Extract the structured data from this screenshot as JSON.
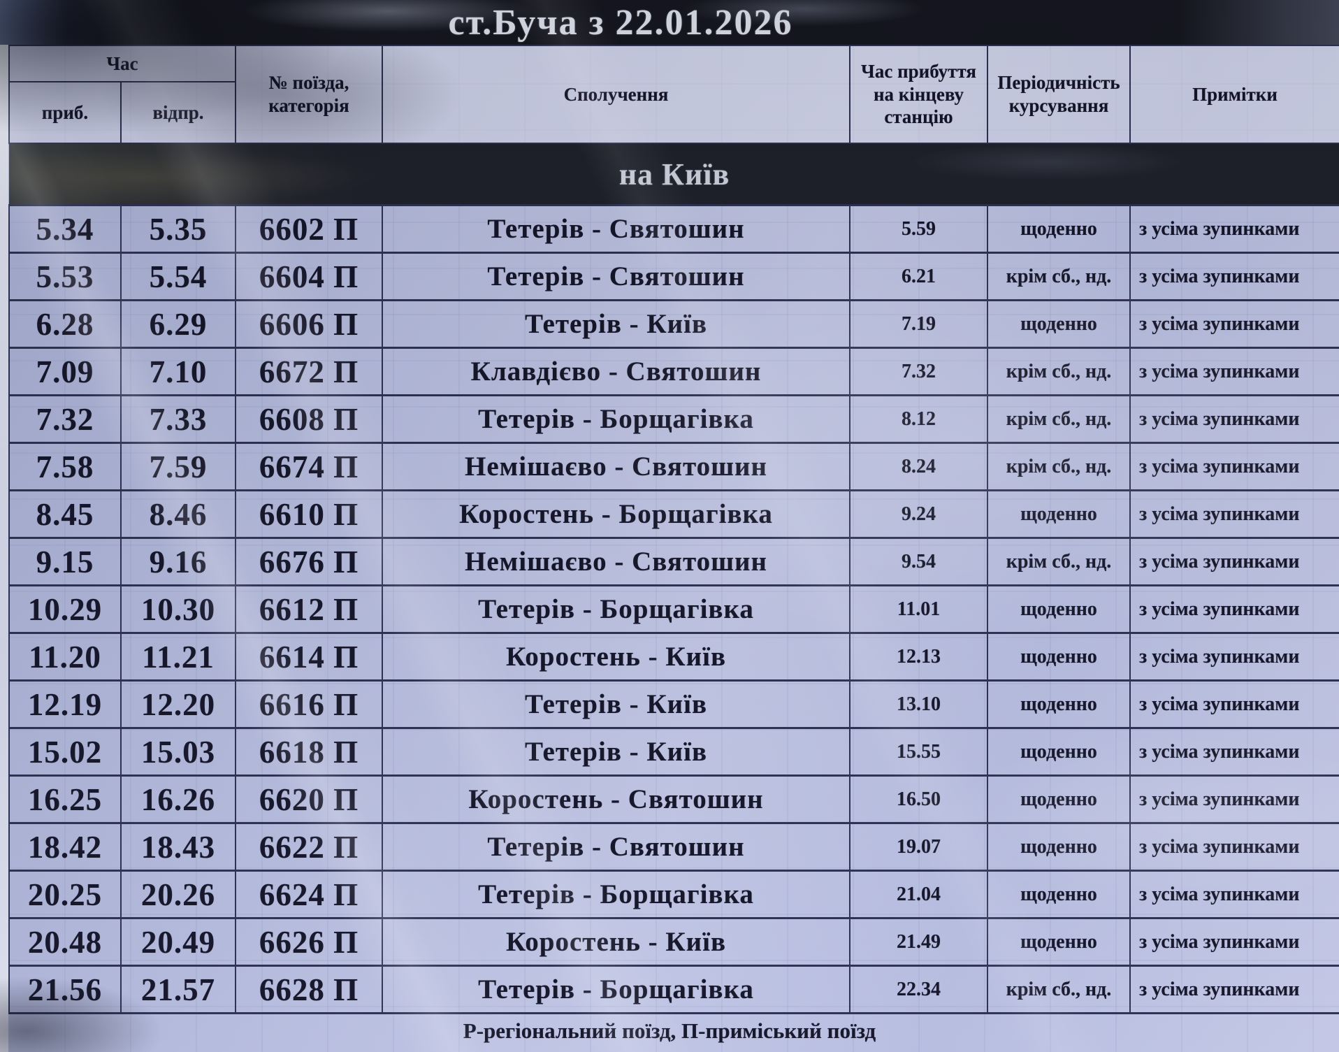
{
  "title": "ст.Буча з 22.01.2026",
  "section_header": "на Київ",
  "columns": {
    "time_group": "Час",
    "arrive": "приб.",
    "depart": "відпр.",
    "train": "№ поїзда,\nкатегорія",
    "route": "Сполучення",
    "final_arrival": "Час прибуття\nна кінцеву\nстанцію",
    "periodicity": "Періодичність\nкурсування",
    "notes": "Примітки"
  },
  "rows": [
    {
      "arr": "5.34",
      "dep": "5.35",
      "train": "6602 П",
      "route": "Тетерів - Святошин",
      "fin": "5.59",
      "per": "щоденно",
      "note": "з усіма зупинками"
    },
    {
      "arr": "5.53",
      "dep": "5.54",
      "train": "6604 П",
      "route": "Тетерів - Святошин",
      "fin": "6.21",
      "per": "крім сб., нд.",
      "note": "з усіма зупинками"
    },
    {
      "arr": "6.28",
      "dep": "6.29",
      "train": "6606 П",
      "route": "Тетерів - Київ",
      "fin": "7.19",
      "per": "щоденно",
      "note": "з усіма зупинками"
    },
    {
      "arr": "7.09",
      "dep": "7.10",
      "train": "6672 П",
      "route": "Клавдієво - Святошин",
      "fin": "7.32",
      "per": "крім сб., нд.",
      "note": "з усіма зупинками"
    },
    {
      "arr": "7.32",
      "dep": "7.33",
      "train": "6608 П",
      "route": "Тетерів - Борщагівка",
      "fin": "8.12",
      "per": "крім сб., нд.",
      "note": "з усіма зупинками"
    },
    {
      "arr": "7.58",
      "dep": "7.59",
      "train": "6674 П",
      "route": "Немішаєво - Святошин",
      "fin": "8.24",
      "per": "крім сб., нд.",
      "note": "з усіма зупинками"
    },
    {
      "arr": "8.45",
      "dep": "8.46",
      "train": "6610 П",
      "route": "Коростень - Борщагівка",
      "fin": "9.24",
      "per": "щоденно",
      "note": "з усіма зупинками"
    },
    {
      "arr": "9.15",
      "dep": "9.16",
      "train": "6676 П",
      "route": "Немішаєво - Святошин",
      "fin": "9.54",
      "per": "крім сб., нд.",
      "note": "з усіма зупинками"
    },
    {
      "arr": "10.29",
      "dep": "10.30",
      "train": "6612 П",
      "route": "Тетерів - Борщагівка",
      "fin": "11.01",
      "per": "щоденно",
      "note": "з усіма зупинками"
    },
    {
      "arr": "11.20",
      "dep": "11.21",
      "train": "6614 П",
      "route": "Коростень - Київ",
      "fin": "12.13",
      "per": "щоденно",
      "note": "з усіма зупинками"
    },
    {
      "arr": "12.19",
      "dep": "12.20",
      "train": "6616 П",
      "route": "Тетерів - Київ",
      "fin": "13.10",
      "per": "щоденно",
      "note": "з усіма зупинками"
    },
    {
      "arr": "15.02",
      "dep": "15.03",
      "train": "6618 П",
      "route": "Тетерів - Київ",
      "fin": "15.55",
      "per": "щоденно",
      "note": "з усіма зупинками"
    },
    {
      "arr": "16.25",
      "dep": "16.26",
      "train": "6620 П",
      "route": "Коростень - Святошин",
      "fin": "16.50",
      "per": "щоденно",
      "note": "з усіма зупинками"
    },
    {
      "arr": "18.42",
      "dep": "18.43",
      "train": "6622 П",
      "route": "Тетерів - Святошин",
      "fin": "19.07",
      "per": "щоденно",
      "note": "з усіма зупинками"
    },
    {
      "arr": "20.25",
      "dep": "20.26",
      "train": "6624 П",
      "route": "Тетерів - Борщагівка",
      "fin": "21.04",
      "per": "щоденно",
      "note": "з усіма зупинками"
    },
    {
      "arr": "20.48",
      "dep": "20.49",
      "train": "6626 П",
      "route": "Коростень - Київ",
      "fin": "21.49",
      "per": "щоденно",
      "note": "з усіма зупинками"
    },
    {
      "arr": "21.56",
      "dep": "21.57",
      "train": "6628 П",
      "route": "Тетерів - Борщагівка",
      "fin": "22.34",
      "per": "крім сб., нд.",
      "note": "з усіма зупинками"
    }
  ],
  "footer": "Р-регіональний поїзд, П-приміський поїзд",
  "colors": {
    "paper": "#c0c6e6",
    "dark_band": "#15161d",
    "ink": "#131326",
    "band_text": "#dde1ec",
    "grid_line": "#2b3050"
  }
}
